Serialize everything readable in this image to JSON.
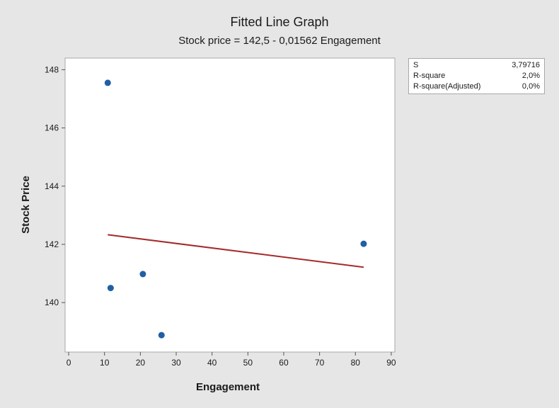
{
  "chart_data": {
    "type": "scatter",
    "title": "Fitted Line Graph",
    "subtitle": "Stock price = 142,5 - 0,01562 Engagement",
    "xlabel": "Engagement",
    "ylabel": "Stock Price",
    "xlim": [
      -1,
      91
    ],
    "ylim": [
      138.3,
      148.4
    ],
    "xticks": [
      "0",
      "10",
      "20",
      "30",
      "40",
      "50",
      "60",
      "70",
      "80",
      "90"
    ],
    "yticks": [
      "140",
      "142",
      "144",
      "146",
      "148"
    ],
    "grid": false,
    "points": [
      {
        "x": 10.9,
        "y": 147.55
      },
      {
        "x": 11.7,
        "y": 140.5
      },
      {
        "x": 20.7,
        "y": 140.98
      },
      {
        "x": 25.9,
        "y": 138.88
      },
      {
        "x": 82.3,
        "y": 142.02
      }
    ],
    "fit_line": {
      "intercept": 142.5,
      "slope": -0.01562,
      "x_range": [
        10.9,
        82.3
      ]
    },
    "colors": {
      "points": "#1f5fa6",
      "fit_line": "#a52a2a",
      "background": "#e6e6e6",
      "plot_bg": "#ffffff"
    }
  },
  "stats": [
    {
      "label": "S",
      "value": "3,79716"
    },
    {
      "label": "R-square",
      "value": "2,0%"
    },
    {
      "label": "R-square(Adjusted)",
      "value": "0,0%"
    }
  ]
}
